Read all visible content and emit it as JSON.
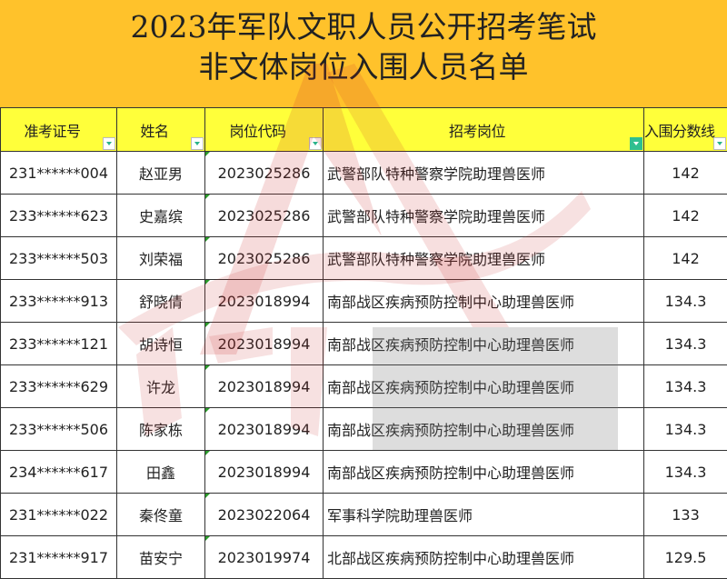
{
  "title": {
    "line1": "2023年军队文职人员公开招考笔试",
    "line2": "非文体岗位入围人员名单"
  },
  "columns": [
    "准考证号",
    "姓名",
    "岗位代码",
    "招考岗位",
    "入围分数线"
  ],
  "filter_active_column": "招考岗位",
  "rows": [
    [
      "231******004",
      "赵亚男",
      "2023025286",
      "武警部队特种警察学院助理兽医师",
      "142"
    ],
    [
      "233******623",
      "史嘉缤",
      "2023025286",
      "武警部队特种警察学院助理兽医师",
      "142"
    ],
    [
      "233******503",
      "刘荣福",
      "2023025286",
      "武警部队特种警察学院助理兽医师",
      "142"
    ],
    [
      "233******913",
      "舒晓倩",
      "2023018994",
      "南部战区疾病预防控制中心助理兽医师",
      "134.3"
    ],
    [
      "233******121",
      "胡诗恒",
      "2023018994",
      "南部战区疾病预防控制中心助理兽医师",
      "134.3"
    ],
    [
      "233******629",
      "许龙",
      "2023018994",
      "南部战区疾病预防控制中心助理兽医师",
      "134.3"
    ],
    [
      "233******506",
      "陈家栋",
      "2023018994",
      "南部战区疾病预防控制中心助理兽医师",
      "134.3"
    ],
    [
      "234******617",
      "田鑫",
      "2023018994",
      "南部战区疾病预防控制中心助理兽医师",
      "134.3"
    ],
    [
      "231******022",
      "秦佟童",
      "2023022064",
      "军事科学院助理兽医师",
      "133"
    ],
    [
      "231******917",
      "苗安宁",
      "2023019974",
      "北部战区疾病预防控制中心助理兽医师",
      "129.5"
    ]
  ],
  "watermark": "红师教育",
  "colors": {
    "title_bg": "#ffc22b",
    "header_bg": "#ffff3a",
    "filter": "#2fbf8f"
  }
}
